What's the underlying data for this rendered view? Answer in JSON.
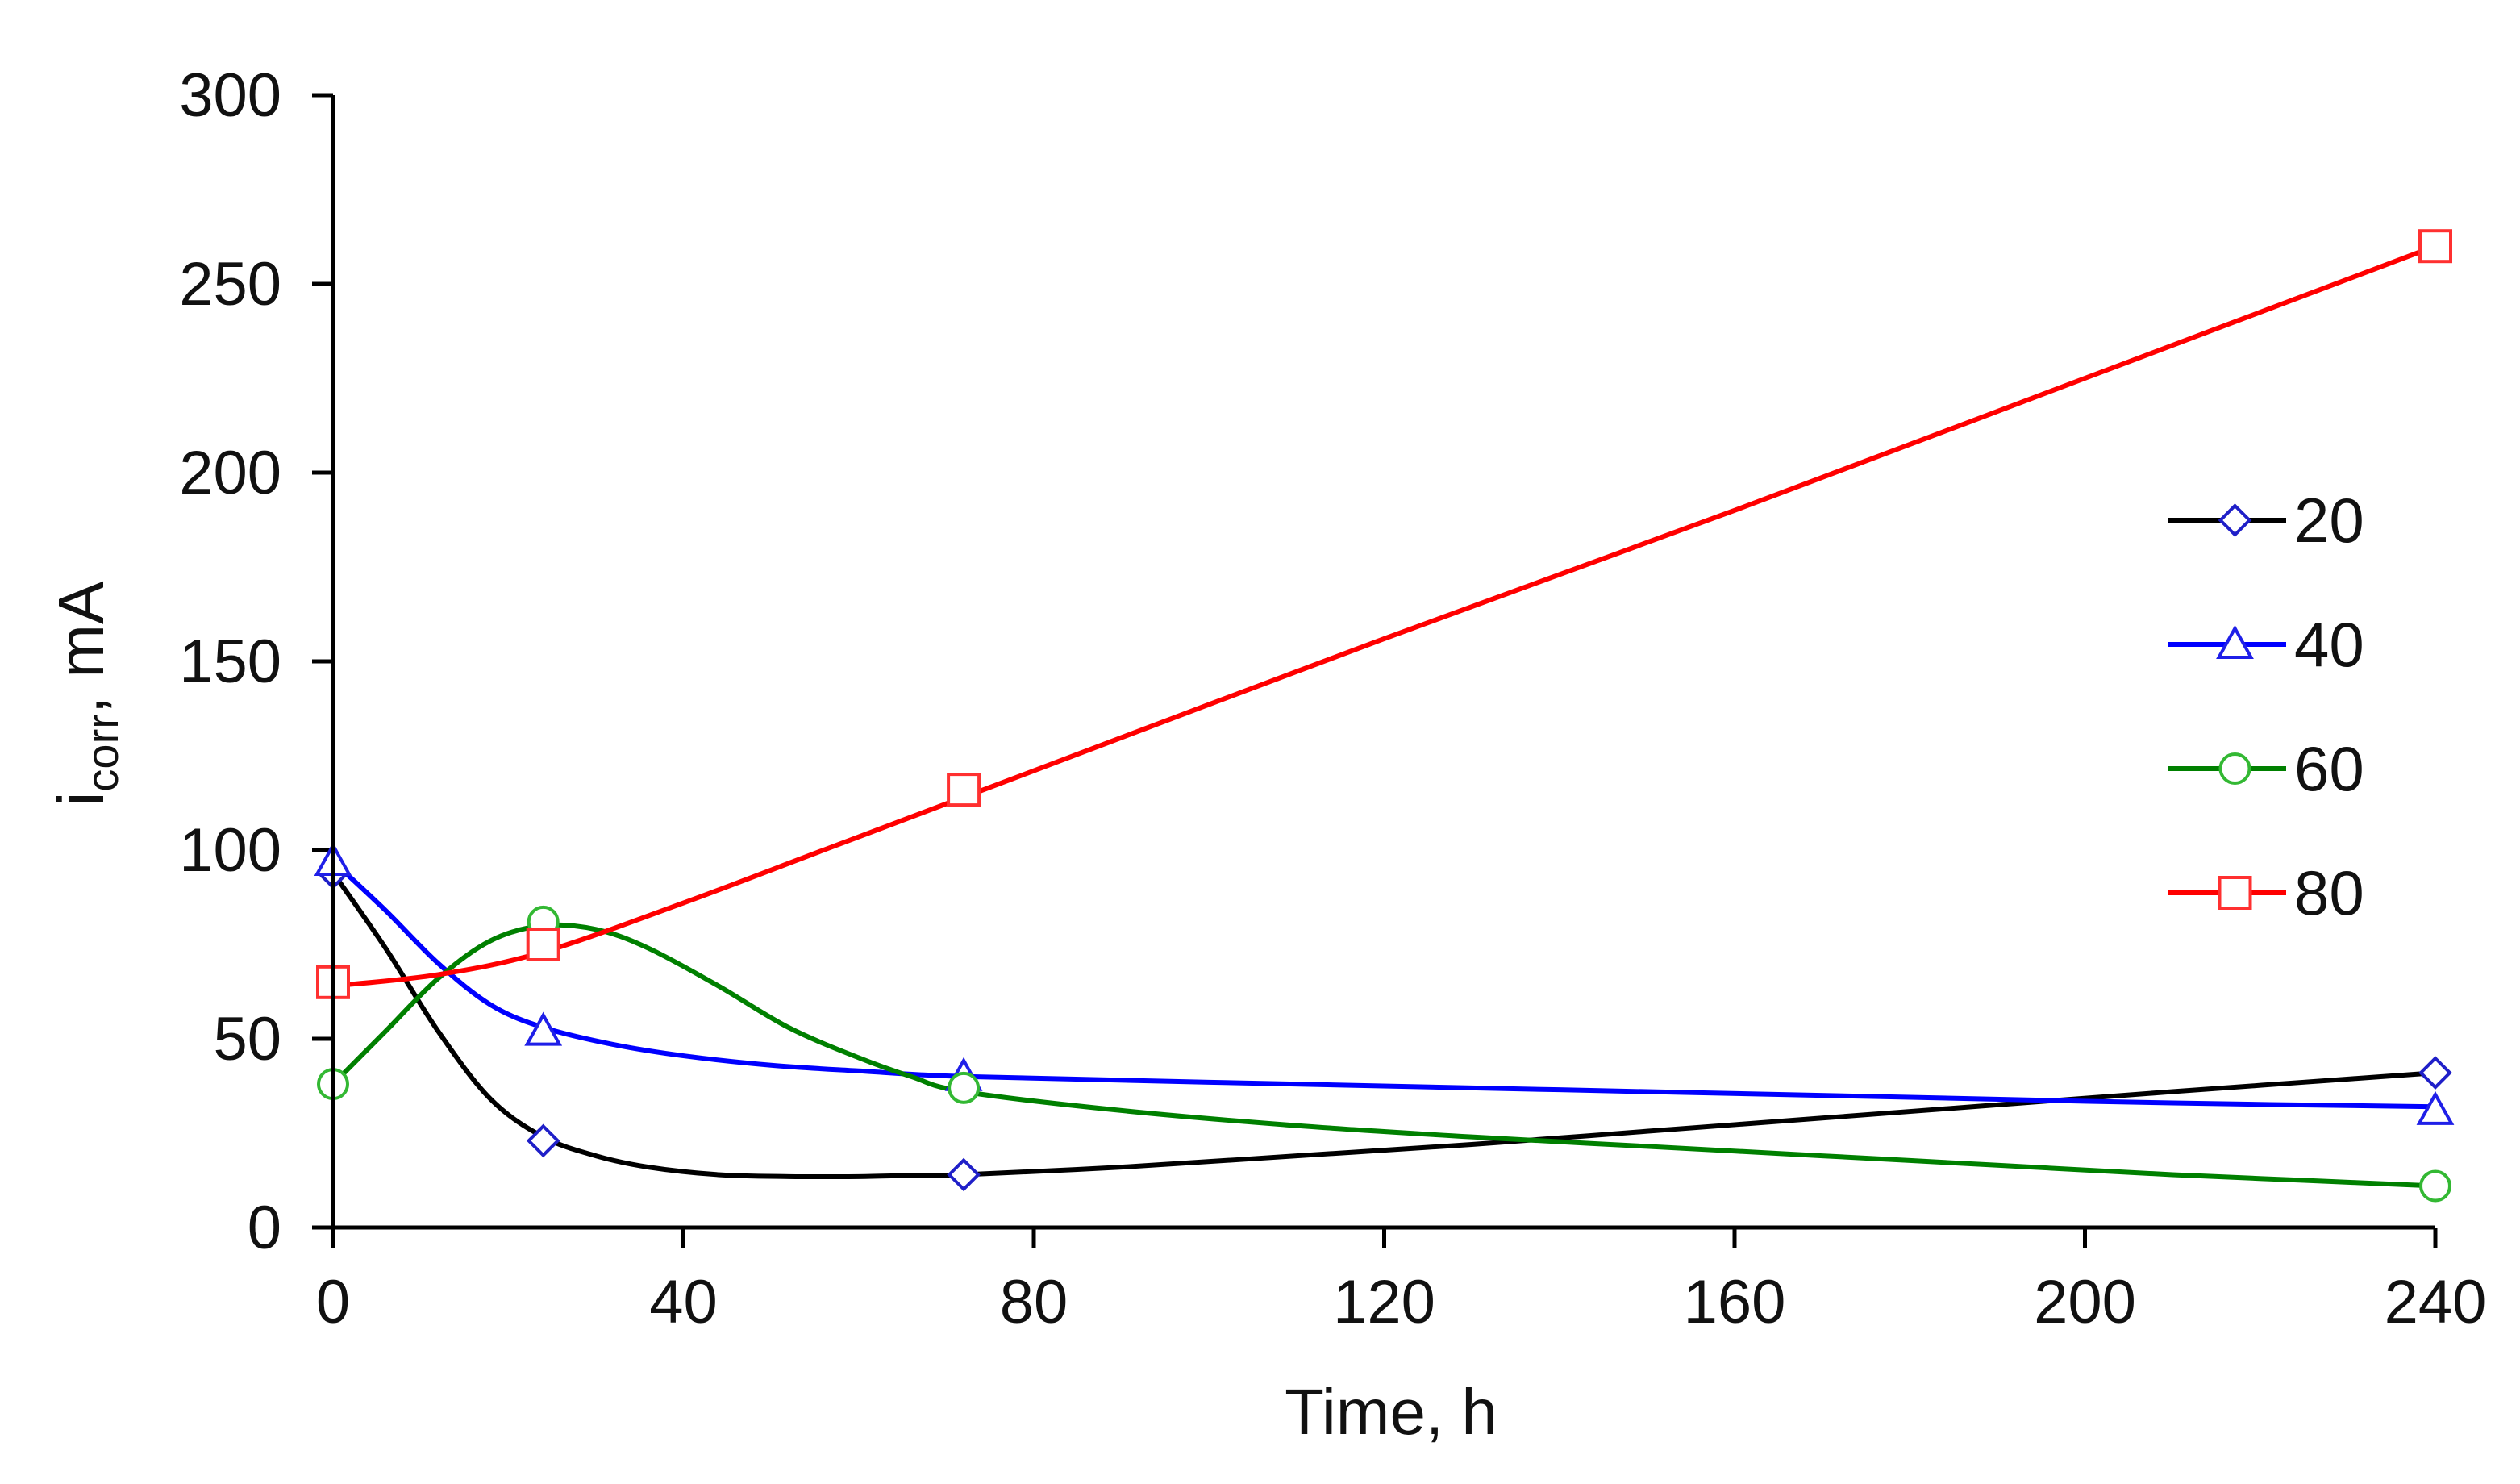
{
  "chart_data": {
    "type": "line",
    "title": "",
    "xlabel": "Time, h",
    "ylabel_main": "i",
    "ylabel_sub": "corr",
    "ylabel_rest": ", mA",
    "xlim": [
      0,
      240
    ],
    "ylim": [
      0,
      300
    ],
    "xticks": [
      0,
      40,
      80,
      120,
      160,
      200,
      240
    ],
    "yticks": [
      0,
      50,
      100,
      150,
      200,
      250,
      300
    ],
    "xtick_labels": [
      "0",
      "40",
      "80",
      "120",
      "160",
      "200",
      "240"
    ],
    "ytick_labels": [
      "0",
      "50",
      "100",
      "150",
      "200",
      "250",
      "300"
    ],
    "grid": false,
    "legend_position": "right",
    "series": [
      {
        "name": "20",
        "line_color": "#000000",
        "marker_color": "#1f1fc8",
        "marker": "diamond",
        "x": [
          0,
          24,
          72,
          240
        ],
        "y": [
          94,
          23,
          14,
          41
        ],
        "curve_x": [
          0,
          6,
          12,
          18,
          24,
          30,
          36,
          44,
          52,
          60,
          66,
          72,
          90,
          110,
          130,
          150,
          170,
          190,
          210,
          225,
          240
        ],
        "curve_y": [
          94,
          74,
          52,
          34,
          24,
          19,
          16,
          14,
          13.5,
          13.5,
          13.8,
          14,
          16,
          19,
          22,
          25.5,
          29,
          32.5,
          36,
          38.5,
          41
        ]
      },
      {
        "name": "40",
        "line_color": "#0000ff",
        "marker_color": "#1f1fe8",
        "marker": "triangle",
        "x": [
          0,
          24,
          72,
          240
        ],
        "y": [
          97,
          52,
          40,
          31
        ],
        "curve_x": [
          0,
          6,
          12,
          18,
          24,
          32,
          40,
          50,
          60,
          72,
          100,
          140,
          180,
          210,
          240
        ],
        "curve_y": [
          97,
          84,
          70,
          59,
          53,
          48.5,
          45.5,
          43,
          41.5,
          40,
          38.5,
          36.5,
          34.5,
          33,
          32
        ]
      },
      {
        "name": "60",
        "line_color": "#008000",
        "marker_color": "#33b833",
        "marker": "circle",
        "x": [
          0,
          24,
          72,
          240
        ],
        "y": [
          38,
          81,
          37,
          11
        ],
        "curve_x": [
          0,
          6,
          12,
          18,
          24,
          30,
          36,
          44,
          52,
          60,
          66,
          72,
          90,
          110,
          130,
          150,
          170,
          190,
          210,
          225,
          240
        ],
        "curve_y": [
          38,
          52,
          66,
          76,
          80,
          79,
          74,
          64,
          53,
          45,
          40,
          36,
          31,
          27,
          24,
          21.5,
          19,
          16.5,
          14,
          12.5,
          11
        ]
      },
      {
        "name": "80",
        "line_color": "#ff0000",
        "marker_color": "#ff3030",
        "marker": "square",
        "x": [
          0,
          24,
          72,
          240
        ],
        "y": [
          65,
          75,
          116,
          260
        ],
        "curve_x": [
          0,
          12,
          24,
          40,
          56,
          72,
          120,
          160,
          200,
          240
        ],
        "curve_y": [
          64,
          67,
          73,
          86,
          100,
          114,
          156,
          190,
          225,
          260
        ]
      }
    ]
  }
}
